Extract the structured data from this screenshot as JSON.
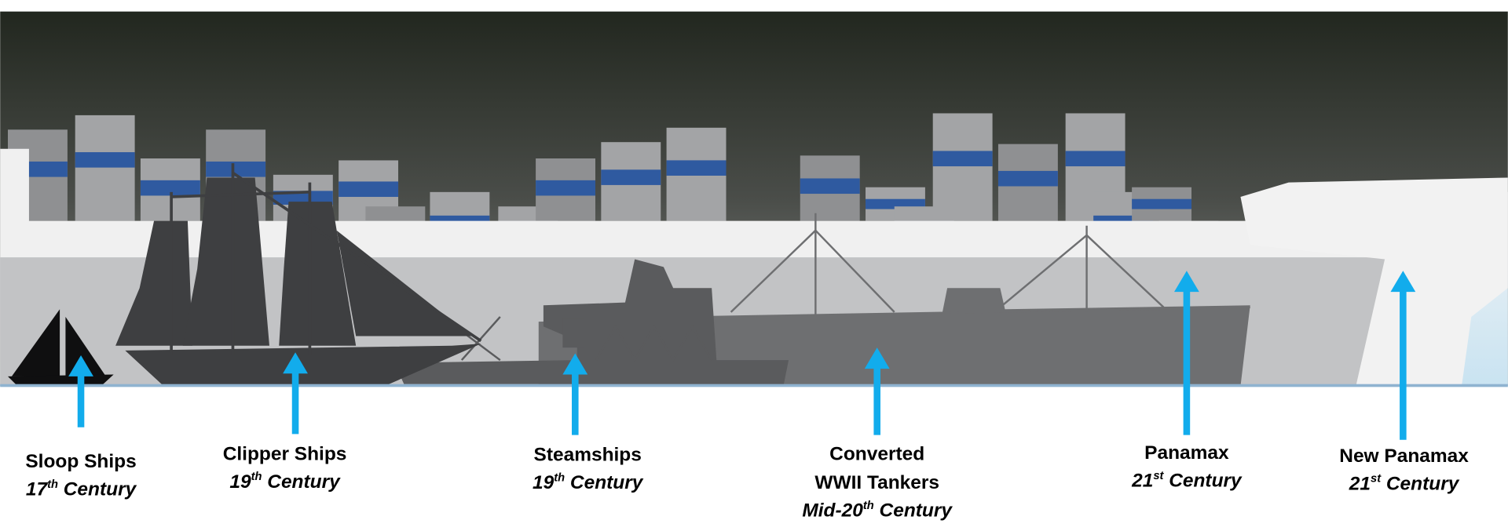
{
  "ships": [
    {
      "name": [
        "Sloop Ships"
      ],
      "era": {
        "number": "17",
        "suffix": "th",
        "rest": " Century"
      }
    },
    {
      "name": [
        "Clipper Ships"
      ],
      "era": {
        "number": "19",
        "suffix": "th",
        "rest": " Century"
      }
    },
    {
      "name": [
        "Steamships"
      ],
      "era": {
        "number": "19",
        "suffix": "th",
        "rest": " Century"
      }
    },
    {
      "name": [
        "Converted",
        "WWII Tankers"
      ],
      "era": {
        "number": "Mid-20",
        "suffix": "th",
        "rest": " Century"
      }
    },
    {
      "name": [
        "Panamax"
      ],
      "era": {
        "number": "21",
        "suffix": "st",
        "rest": " Century"
      }
    },
    {
      "name": [
        "New Panamax"
      ],
      "era": {
        "number": "21",
        "suffix": "st",
        "rest": " Century"
      }
    }
  ]
}
